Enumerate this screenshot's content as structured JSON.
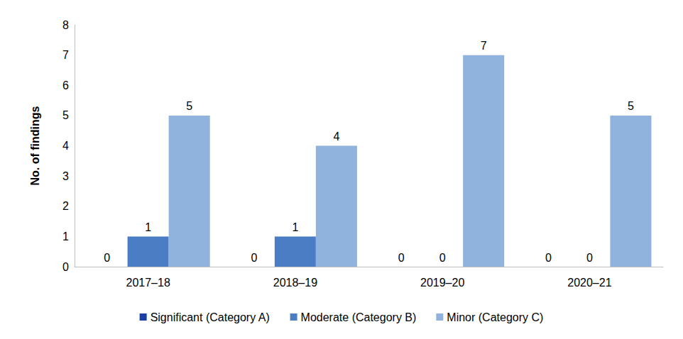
{
  "chart_data": {
    "type": "bar",
    "categories": [
      "2017–18",
      "2018–19",
      "2019–20",
      "2020–21"
    ],
    "series": [
      {
        "name": "Significant (Category A)",
        "color": "#1a3fa6",
        "values": [
          0,
          0,
          0,
          0
        ]
      },
      {
        "name": "Moderate (Category B)",
        "color": "#4a7dc4",
        "values": [
          1,
          1,
          0,
          0
        ]
      },
      {
        "name": "Minor (Category C)",
        "color": "#8fb3dc",
        "values": [
          5,
          4,
          7,
          5
        ]
      }
    ],
    "y_label": "No. of findings",
    "ylim": [
      0,
      8
    ],
    "yticks": [
      0,
      1,
      2,
      3,
      4,
      5,
      6,
      7,
      8
    ],
    "grid": false,
    "legend": "bottom",
    "data_labels": true
  }
}
